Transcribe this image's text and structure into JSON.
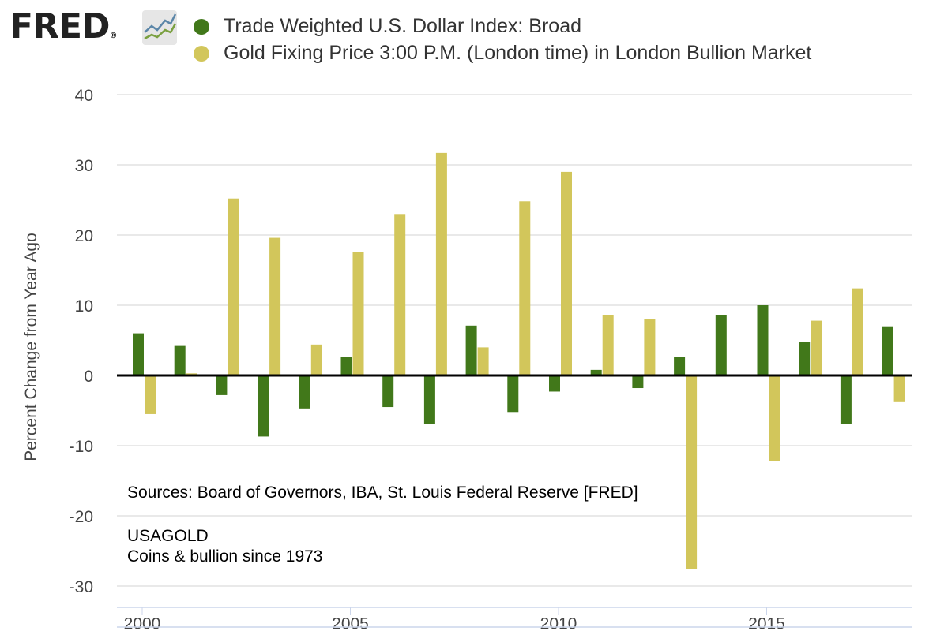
{
  "header": {
    "logo": "FRED"
  },
  "chart_data": {
    "type": "bar",
    "categories": [
      "2000",
      "2001",
      "2002",
      "2003",
      "2004",
      "2005",
      "2006",
      "2007",
      "2008",
      "2009",
      "2010",
      "2011",
      "2012",
      "2013",
      "2014",
      "2015",
      "2016",
      "2017",
      "2018"
    ],
    "series": [
      {
        "name": "Trade Weighted U.S. Dollar Index: Broad",
        "color": "#41781a",
        "values": [
          6.0,
          4.2,
          -2.8,
          -8.7,
          -4.7,
          2.6,
          -4.5,
          -6.9,
          7.1,
          -5.2,
          -2.3,
          0.8,
          -1.8,
          2.6,
          8.6,
          10.0,
          4.8,
          -6.9,
          7.0
        ]
      },
      {
        "name": "Gold Fixing Price 3:00 P.M. (London time) in London Bullion Market",
        "color": "#d2c65b",
        "values": [
          -5.5,
          0.3,
          25.2,
          19.6,
          4.4,
          17.6,
          23.0,
          31.7,
          4.0,
          24.8,
          29.0,
          8.6,
          8.0,
          -27.6,
          null,
          -12.2,
          7.8,
          12.4,
          -3.8
        ]
      }
    ],
    "ylabel": "Percent Change from Year Ago",
    "ylim": [
      -30,
      40
    ],
    "yticks": [
      "-30",
      "-20",
      "-10",
      "0",
      "10",
      "20",
      "30",
      "40"
    ],
    "xticks": [
      "2000",
      "2005",
      "2010",
      "2015"
    ],
    "grid": true,
    "legend": "top"
  },
  "notes": {
    "sources": "Sources:  Board of Governors, IBA, St. Louis Federal Reserve [FRED]",
    "brand": "USAGOLD",
    "tagline": "Coins & bullion since 1973"
  }
}
